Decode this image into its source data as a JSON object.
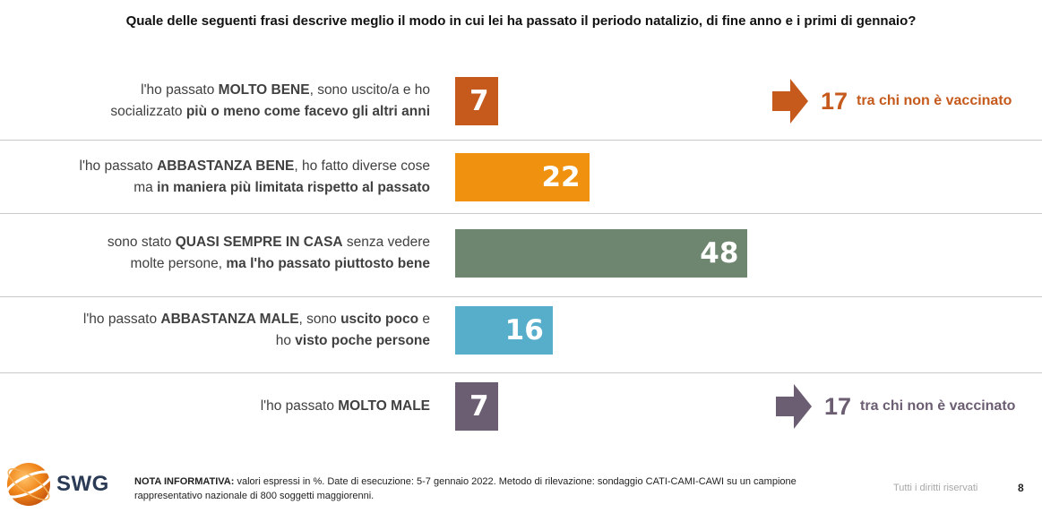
{
  "question": "Quale delle seguenti frasi descrive meglio il modo in cui lei ha passato il periodo natalizio, di fine anno e i primi di gennaio?",
  "chart_data": {
    "type": "bar",
    "orientation": "horizontal",
    "unit": "%",
    "categories": [
      "l'ho passato MOLTO BENE, sono uscito/a e ho socializzato più o meno come facevo gli altri anni",
      "l'ho passato ABBASTANZA BENE, ho fatto diverse cose ma in maniera più limitata rispetto al passato",
      "sono stato QUASI SEMPRE IN CASA senza vedere molte persone, ma l'ho passato piuttosto bene",
      "l'ho passato ABBASTANZA MALE, sono uscito poco e ho visto poche persone",
      "l'ho passato MOLTO MALE"
    ],
    "values": [
      7,
      22,
      48,
      16,
      7
    ],
    "bar_colors": [
      "#c55a1c",
      "#f0920f",
      "#6e8670",
      "#57aecb",
      "#6c5e72"
    ],
    "annotations": [
      {
        "row": 0,
        "value": 17,
        "text": "tra chi non è vaccinato",
        "color": "#c55a1c"
      },
      {
        "row": 4,
        "value": 17,
        "text": "tra chi non è vaccinato",
        "color": "#6c5e72"
      }
    ]
  },
  "rows": [
    {
      "parts": [
        {
          "t": "l'ho passato ",
          "b": false
        },
        {
          "t": "MOLTO BENE",
          "b": true
        },
        {
          "t": ", sono uscito/a e ho",
          "b": false
        },
        {
          "br": true
        },
        {
          "t": "socializzato ",
          "b": false
        },
        {
          "t": "più o meno come facevo gli altri anni",
          "b": true
        }
      ]
    },
    {
      "parts": [
        {
          "t": "l'ho passato ",
          "b": false
        },
        {
          "t": "ABBASTANZA BENE",
          "b": true
        },
        {
          "t": ", ho fatto diverse cose",
          "b": false
        },
        {
          "br": true
        },
        {
          "t": "ma ",
          "b": false
        },
        {
          "t": "in maniera più limitata rispetto al passato",
          "b": true
        }
      ]
    },
    {
      "parts": [
        {
          "t": "sono stato ",
          "b": false
        },
        {
          "t": "QUASI SEMPRE IN CASA",
          "b": true
        },
        {
          "t": " senza vedere",
          "b": false
        },
        {
          "br": true
        },
        {
          "t": "molte persone, ",
          "b": false
        },
        {
          "t": "ma l'ho passato piuttosto bene",
          "b": true
        }
      ]
    },
    {
      "parts": [
        {
          "t": "l'ho passato ",
          "b": false
        },
        {
          "t": "ABBASTANZA MALE",
          "b": true
        },
        {
          "t": ", sono ",
          "b": false
        },
        {
          "t": "uscito poco",
          "b": true
        },
        {
          "t": " e",
          "b": false
        },
        {
          "br": true
        },
        {
          "t": "ho ",
          "b": false
        },
        {
          "t": "visto poche persone",
          "b": true
        }
      ]
    },
    {
      "parts": [
        {
          "t": "l'ho passato ",
          "b": false
        },
        {
          "t": "MOLTO MALE",
          "b": true
        }
      ]
    }
  ],
  "footer": {
    "logo_text": "SWG",
    "note_label": "NOTA INFORMATIVA:",
    "note_text": " valori espressi in %. Date di esecuzione: 5-7 gennaio 2022. Metodo di rilevazione: sondaggio CATI-CAMI-CAWI su un campione rappresentativo nazionale di 800 soggetti maggiorenni.",
    "rights": "Tutti i diritti riservati",
    "page": "8"
  }
}
